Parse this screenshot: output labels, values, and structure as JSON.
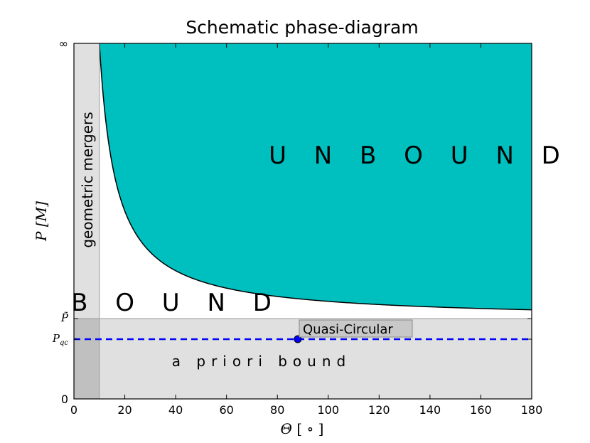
{
  "chart_data": {
    "type": "area",
    "title": "Schematic phase-diagram",
    "xlabel": "Θ [ ∘ ]",
    "ylabel": "P [M]",
    "xlim": [
      0,
      180
    ],
    "ylim_ticks": [
      "0",
      "P_qc",
      "P̃",
      "∞"
    ],
    "x_ticks": [
      0,
      20,
      40,
      60,
      80,
      100,
      120,
      140,
      160,
      180
    ],
    "regions": {
      "unbound": "U N B O U N D",
      "bound": "B O U N D",
      "a_priori_bound": "a priori bound",
      "geometric_mergers": "geometric mergers"
    },
    "geometric_mergers_theta_max": 10,
    "boundary_curve": {
      "description": "critical impact parameter separating bound and unbound",
      "theta_start": 10,
      "theta_end": 180
    },
    "quasi_circular": {
      "label": "Quasi-Circular",
      "theta": 88
    },
    "colors": {
      "unbound_fill": "#00bfbf",
      "gray_band": "#e0e0e0",
      "overlap_gray": "#c0c0c0",
      "dashed_line": "#0000ff",
      "point": "#0000ff"
    }
  },
  "labels": {
    "y_tick_zero": "0",
    "y_tick_pqc_main": "P",
    "y_tick_pqc_sub": "qc",
    "y_tick_ptilde": "P̃",
    "y_tick_inf": "∞",
    "xlabel_theta": "Θ",
    "xlabel_unit": "[ ∘ ]",
    "ylabel_p": "P",
    "ylabel_m": "[M]"
  }
}
